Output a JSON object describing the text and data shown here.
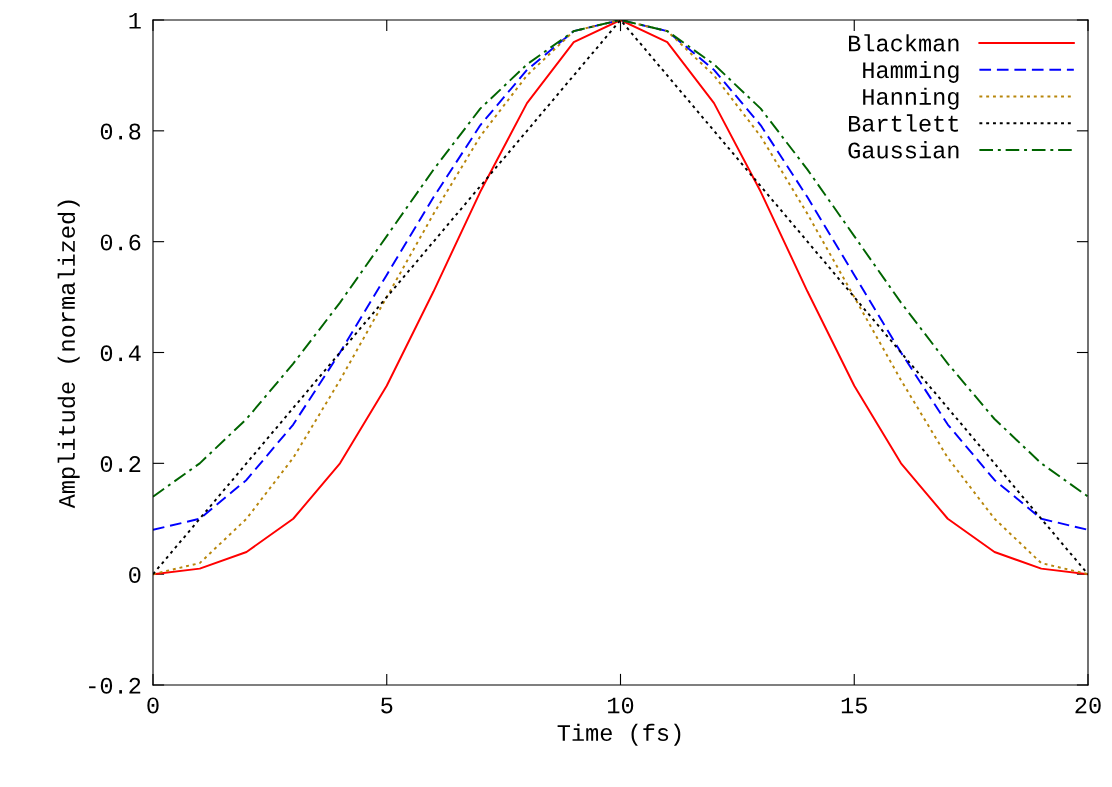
{
  "chart_data": {
    "type": "line",
    "xlabel": "Time (fs)",
    "ylabel": "Amplitude (normalized)",
    "x": [
      0,
      1,
      2,
      3,
      4,
      5,
      6,
      7,
      8,
      9,
      10,
      11,
      12,
      13,
      14,
      15,
      16,
      17,
      18,
      19,
      20
    ],
    "xlim": [
      0,
      20
    ],
    "xticks": [
      0,
      5,
      10,
      15,
      20
    ],
    "ylim": [
      -0.2,
      1
    ],
    "yticks": [
      {
        "value": -0.2,
        "label": "-0.2"
      },
      0,
      0.2,
      0.4,
      0.6,
      0.8,
      1
    ],
    "grid": false,
    "legend": "top right",
    "marker": "none",
    "series": [
      {
        "name": "Blackman",
        "color": "#ff0000",
        "line_style": "solid",
        "values": [
          0,
          0.01,
          0.04,
          0.1,
          0.2,
          0.34,
          0.51,
          0.69,
          0.85,
          0.96,
          1,
          0.96,
          0.85,
          0.69,
          0.51,
          0.34,
          0.2,
          0.1,
          0.04,
          0.01,
          0
        ]
      },
      {
        "name": "Hamming",
        "color": "#0000ff",
        "line_style": "dashed",
        "values": [
          0.08,
          0.1,
          0.17,
          0.27,
          0.4,
          0.54,
          0.68,
          0.81,
          0.91,
          0.98,
          1,
          0.98,
          0.91,
          0.81,
          0.68,
          0.54,
          0.4,
          0.27,
          0.17,
          0.1,
          0.08
        ]
      },
      {
        "name": "Hanning",
        "color": "#b8860b",
        "line_style": "dotted",
        "values": [
          0,
          0.02,
          0.1,
          0.21,
          0.35,
          0.5,
          0.65,
          0.79,
          0.9,
          0.98,
          1,
          0.98,
          0.9,
          0.79,
          0.65,
          0.5,
          0.35,
          0.21,
          0.1,
          0.02,
          0
        ]
      },
      {
        "name": "Bartlett",
        "color": "#000000",
        "line_style": "dotted",
        "x": [
          0,
          10,
          20
        ],
        "values": [
          0,
          1,
          0
        ]
      },
      {
        "name": "Gaussian",
        "color": "#006400",
        "line_style": "dashdot",
        "values": [
          0.14,
          0.2,
          0.28,
          0.38,
          0.49,
          0.61,
          0.73,
          0.84,
          0.92,
          0.98,
          1,
          0.98,
          0.92,
          0.84,
          0.73,
          0.61,
          0.49,
          0.38,
          0.28,
          0.2,
          0.14
        ]
      }
    ]
  }
}
